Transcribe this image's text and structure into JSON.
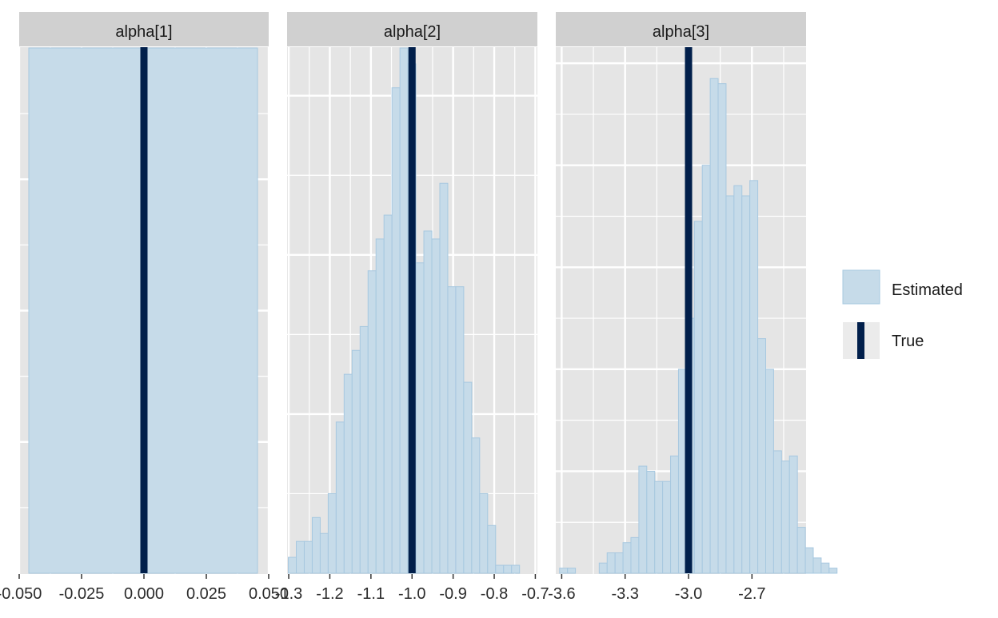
{
  "chart_data": [
    {
      "type": "bar",
      "facet": "alpha[1]",
      "xlim": [
        -0.05,
        0.05
      ],
      "x_ticks": [
        -0.05,
        -0.025,
        0.0,
        0.025,
        0.05
      ],
      "x_tick_labels": [
        "-0.050",
        "-0.025",
        "0.000",
        "0.025",
        "0.050"
      ],
      "bins": [
        {
          "x0": -0.05,
          "x1": 0.05,
          "count": 1.0
        }
      ],
      "ylim": [
        0,
        1
      ],
      "true_value": 0.0
    },
    {
      "type": "bar",
      "facet": "alpha[2]",
      "xlim": [
        -1.304,
        -0.695
      ],
      "x_ticks": [
        -1.3,
        -1.2,
        -1.1,
        -1.0,
        -0.9,
        -0.8,
        -0.7
      ],
      "x_tick_labels": [
        "-1.3",
        "-1.2",
        "-1.1",
        "-1.0",
        "-0.9",
        "-0.8",
        "-0.7"
      ],
      "bin_start": -1.301,
      "bin_width": 0.0194,
      "counts": [
        2,
        4,
        4,
        7,
        5,
        10,
        19,
        25,
        28,
        31,
        38,
        42,
        45,
        61,
        66,
        64,
        39,
        43,
        42,
        49,
        36,
        36,
        24,
        17,
        10,
        6,
        1,
        1,
        1
      ],
      "ylim": [
        0,
        66
      ],
      "true_value": -1.0
    },
    {
      "type": "bar",
      "facet": "alpha[3]",
      "xlim": [
        -3.628,
        -2.444
      ],
      "x_ticks": [
        -3.6,
        -3.3,
        -3.0,
        -2.7
      ],
      "x_tick_labels": [
        "-3.6",
        "-3.3",
        "-3.0",
        "-2.7"
      ],
      "bin_start": -3.61,
      "bin_width": 0.0375,
      "counts": [
        1,
        1,
        0,
        0,
        0,
        2,
        4,
        4,
        6,
        7,
        21,
        20,
        18,
        18,
        23,
        40,
        50,
        69,
        80,
        97,
        96,
        74,
        76,
        74,
        77,
        46,
        40,
        24,
        22,
        23,
        9,
        5,
        3,
        2,
        1
      ],
      "ylim": [
        0,
        103
      ],
      "true_value": -3.0
    }
  ],
  "legend": {
    "position": "right",
    "items": [
      {
        "label": "Estimated",
        "color": "#c6dbe9",
        "border": "#a7c8e0"
      },
      {
        "label": "True",
        "color": "#011f4b"
      }
    ]
  },
  "style": {
    "panel_bg": "#e5e5e5",
    "strip_bg": "#d0d0d0",
    "grid_color": "#ffffff",
    "bar_fill": "#c6dbe9",
    "bar_stroke": "#a7c8e0",
    "true_color": "#011f4b"
  }
}
